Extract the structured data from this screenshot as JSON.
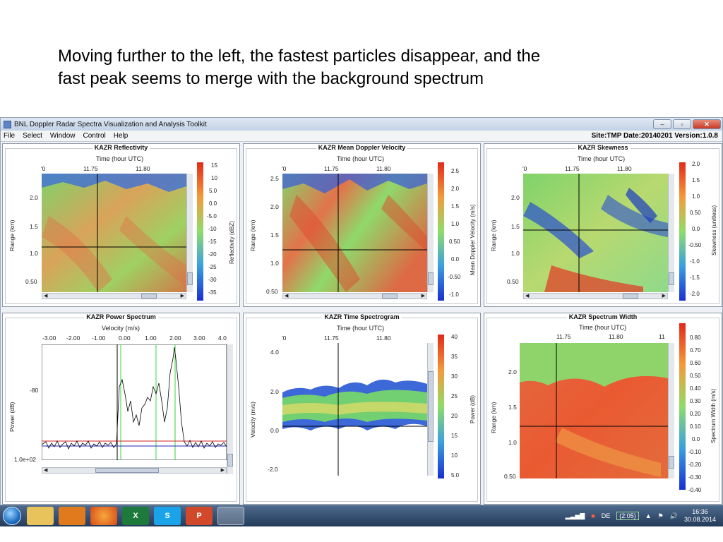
{
  "slide": {
    "text_line1": "Moving further to the left, the fastest particles disappear, and the",
    "text_line2": "fast peak seems to merge with the background spectrum"
  },
  "window": {
    "title": "BNL Doppler Radar Spectra Visualization and Analysis Toolkit",
    "minimize": "–",
    "restore": "▫",
    "close": "✕"
  },
  "menu": {
    "items": [
      "File",
      "Select",
      "Window",
      "Control",
      "Help"
    ],
    "status": "Site:TMP  Date:20140201  Version:1.0.8"
  },
  "panels": {
    "reflectivity": {
      "title": "KAZR Reflectivity",
      "xlabel": "Time (hour UTC)",
      "xticks": [
        "'0",
        "11.75",
        "11.80"
      ],
      "ylabel": "Range (km)",
      "yticks": [
        "2.0",
        "1.5",
        "1.0",
        "0.50"
      ],
      "cbar_label": "Reflectivity (dBZ)",
      "cbar_ticks": [
        "15",
        "10",
        "5.0",
        "0.0",
        "-5.0",
        "-10",
        "-15",
        "-20",
        "-25",
        "-30",
        "-35"
      ]
    },
    "velocity": {
      "title": "KAZR Mean Doppler Velocity",
      "xlabel": "Time (hour UTC)",
      "xticks": [
        "'0",
        "11.75",
        "11.80"
      ],
      "ylabel": "Range (km)",
      "yticks": [
        "2.5",
        "2.0",
        "1.5",
        "1.0",
        "0.50"
      ],
      "cbar_label": "Mean Doppler Velocity (m/s)",
      "cbar_ticks": [
        "2.5",
        "2.0",
        "1.5",
        "1.0",
        "0.50",
        "0.0",
        "-0.50",
        "-1.0"
      ]
    },
    "skewness": {
      "title": "KAZR Skewness",
      "xlabel": "Time (hour UTC)",
      "xticks": [
        "'0",
        "11.75",
        "11.80"
      ],
      "ylabel": "Range (km)",
      "yticks": [
        "2.0",
        "1.5",
        "1.0",
        "0.50"
      ],
      "cbar_label": "Skewness (unitless)",
      "cbar_ticks": [
        "2.0",
        "1.5",
        "1.0",
        "0.50",
        "0.0",
        "-0.50",
        "-1.0",
        "-1.5",
        "-2.0"
      ]
    },
    "spectrum": {
      "title": "KAZR Power Spectrum",
      "xlabel": "Velocity (m/s)",
      "xticks": [
        "-3.00",
        "-2.00",
        "-1.00",
        "0.00",
        "1.00",
        "2.00",
        "3.00",
        "4.0"
      ],
      "ylabel": "Power (dB)",
      "yticks": [
        "-80",
        "1.0e+02"
      ]
    },
    "spectrogram": {
      "title": "KAZR Time Spectrogram",
      "xlabel": "Time (hour UTC)",
      "xticks": [
        "'0",
        "11.75",
        "11.80"
      ],
      "ylabel": "Velocity (m/s)",
      "yticks": [
        "4.0",
        "2.0",
        "0.0",
        "-2.0"
      ],
      "cbar_label": "Power (dB)",
      "cbar_ticks": [
        "40",
        "35",
        "30",
        "25",
        "20",
        "15",
        "10",
        "5.0"
      ]
    },
    "width": {
      "title": "KAZR Spectrum Width",
      "xlabel": "Time (hour UTC)",
      "xticks": [
        "11.75",
        "11.80",
        "11"
      ],
      "ylabel": "Range (km)",
      "yticks": [
        "2.0",
        "1.5",
        "1.0",
        "0.50"
      ],
      "cbar_label": "Spectrum Width (m/s)",
      "cbar_ticks": [
        "0.80",
        "0.70",
        "0.60",
        "0.50",
        "0.40",
        "0.30",
        "0.20",
        "0.10",
        "0.0",
        "-0.10",
        "-0.20",
        "-0.30",
        "-0.40"
      ]
    }
  },
  "taskbar": {
    "apps": [
      "",
      "",
      "",
      "",
      "X",
      "S",
      "P",
      ""
    ],
    "lang": "DE",
    "battery": "(2:05)",
    "time": "16:36",
    "date": "30.08.2014"
  }
}
